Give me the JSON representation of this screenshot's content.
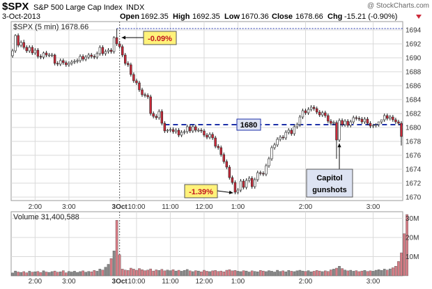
{
  "header": {
    "symbol": "$SPX",
    "name": "S&P 500 Large Cap Index",
    "exchange": "INDX",
    "date": "3-Oct-2013",
    "watermark": "@ StockCharts.com",
    "open_label": "Open",
    "open": "1692.35",
    "high_label": "High",
    "high": "1692.35",
    "low_label": "Low",
    "low": "1670.36",
    "close_label": "Close",
    "close": "1678.66",
    "chg_label": "Chg",
    "chg": "-15.21 (-0.90%)"
  },
  "colors": {
    "up_candle": "#ffffff",
    "down_candle": "#cc2a3a",
    "volume_up": "#888888",
    "volume_down": "#d77b84",
    "reference_line": "#1c2fa8",
    "grid": "#d9d9d9",
    "annotation_fill": "#fff27a"
  },
  "chart_data": [
    {
      "type": "candlestick",
      "legend": "$SPX (5 min) 1678.66",
      "x_tick_labels": [
        "2:00",
        "3:00",
        "3Oct",
        "10:00",
        "11:00",
        "12:00",
        "1:00",
        "2:00",
        "3:00"
      ],
      "y_ticks": [
        1670,
        1672,
        1674,
        1676,
        1678,
        1680,
        1682,
        1684,
        1686,
        1688,
        1690,
        1692,
        1694
      ],
      "ylim": [
        1669.5,
        1695.2
      ],
      "reference_line": {
        "value": 1680.4,
        "label": "1680"
      },
      "previous_high_line": {
        "value": 1694.2
      },
      "annotations": [
        {
          "text": "-0.09%",
          "target_index": 38
        },
        {
          "text": "-1.39%",
          "target_index": 79
        },
        {
          "text": "Capitol gunshots",
          "lines": [
            "Capitol",
            "gunshots"
          ],
          "target_index": 116
        }
      ],
      "open": [
        1690.3,
        1691.0,
        1693.2,
        1691.8,
        1692.2,
        1691.5,
        1691.0,
        1691.5,
        1690.7,
        1691.1,
        1690.2,
        1690.1,
        1690.7,
        1690.4,
        1690.4,
        1690.4,
        1689.2,
        1689.1,
        1689.6,
        1689.3,
        1689.0,
        1689.2,
        1689.4,
        1689.5,
        1689.6,
        1690.2,
        1689.8,
        1690.1,
        1690.4,
        1690.2,
        1690.1,
        1690.6,
        1691.5,
        1690.6,
        1690.9,
        1691.1,
        1690.9,
        1692.9,
        1692.0,
        1691.6,
        1690.4,
        1689.2,
        1689.0,
        1687.6,
        1686.7,
        1686.4,
        1685.4,
        1684.7,
        1684.6,
        1684.4,
        1682.0,
        1681.6,
        1681.4,
        1682.3,
        1680.6,
        1679.5,
        1679.6,
        1679.7,
        1679.4,
        1679.6,
        1678.9,
        1679.3,
        1679.4,
        1680.1,
        1679.5,
        1680.1,
        1679.6,
        1679.6,
        1679.5,
        1678.9,
        1678.6,
        1679.0,
        1678.5,
        1677.3,
        1677.1,
        1676.1,
        1675.1,
        1674.3,
        1672.8,
        1672.1,
        1670.7,
        1671.0,
        1672.3,
        1671.4,
        1672.4,
        1672.7,
        1671.5,
        1672.5,
        1673.5,
        1673.4,
        1673.3,
        1674.5,
        1675.5,
        1677.1,
        1677.5,
        1678.3,
        1678.6,
        1678.5,
        1679.3,
        1679.6,
        1679.1,
        1680.1,
        1680.4,
        1681.5,
        1682.4,
        1682.1,
        1682.6,
        1682.9,
        1682.7,
        1682.2,
        1681.8,
        1682.1,
        1681.7,
        1680.9,
        1680.6,
        1680.7,
        1678.2,
        1681.0,
        1680.4,
        1680.9,
        1680.3,
        1680.8,
        1681.4,
        1681.3,
        1681.2,
        1680.8,
        1681.2,
        1680.6,
        1680.2,
        1680.3,
        1680.4,
        1680.8,
        1681.1,
        1681.7,
        1681.3,
        1681.5,
        1681.1,
        1680.8,
        1680.6
      ],
      "close": [
        1691.0,
        1693.2,
        1691.8,
        1692.2,
        1691.5,
        1691.0,
        1691.5,
        1690.7,
        1691.1,
        1690.2,
        1690.1,
        1690.7,
        1690.4,
        1690.4,
        1690.4,
        1689.2,
        1689.1,
        1689.6,
        1689.3,
        1689.0,
        1689.2,
        1689.4,
        1689.5,
        1689.6,
        1690.2,
        1689.8,
        1690.1,
        1690.4,
        1690.2,
        1690.1,
        1690.6,
        1691.5,
        1690.6,
        1690.9,
        1691.1,
        1690.9,
        1692.9,
        1692.0,
        1691.6,
        1690.4,
        1689.2,
        1689.0,
        1687.6,
        1686.7,
        1686.4,
        1685.4,
        1684.7,
        1684.6,
        1684.4,
        1682.0,
        1681.6,
        1681.4,
        1682.3,
        1680.6,
        1679.5,
        1679.6,
        1679.7,
        1679.4,
        1679.6,
        1678.9,
        1679.3,
        1679.4,
        1680.1,
        1679.5,
        1680.1,
        1679.6,
        1679.6,
        1679.5,
        1678.9,
        1678.6,
        1679.0,
        1678.5,
        1677.3,
        1677.1,
        1676.1,
        1675.1,
        1674.3,
        1672.8,
        1672.1,
        1670.7,
        1671.0,
        1672.3,
        1671.4,
        1672.4,
        1672.7,
        1671.5,
        1672.5,
        1673.5,
        1673.4,
        1673.3,
        1674.5,
        1675.5,
        1677.1,
        1677.5,
        1678.3,
        1678.6,
        1678.5,
        1679.3,
        1679.6,
        1679.1,
        1680.1,
        1680.4,
        1681.5,
        1682.4,
        1682.1,
        1682.6,
        1682.9,
        1682.7,
        1682.2,
        1681.8,
        1682.1,
        1681.7,
        1680.9,
        1680.6,
        1680.7,
        1678.2,
        1681.0,
        1680.4,
        1680.9,
        1680.3,
        1680.8,
        1681.4,
        1681.3,
        1681.2,
        1680.8,
        1681.2,
        1680.6,
        1680.2,
        1680.3,
        1680.4,
        1680.8,
        1681.1,
        1681.7,
        1681.3,
        1681.5,
        1681.1,
        1680.8,
        1680.6,
        1678.7
      ],
      "high": [
        1691.3,
        1693.4,
        1693.5,
        1692.5,
        1692.6,
        1691.8,
        1691.8,
        1691.8,
        1691.4,
        1691.4,
        1690.5,
        1690.9,
        1691.0,
        1690.7,
        1690.7,
        1690.6,
        1689.5,
        1689.9,
        1689.9,
        1689.6,
        1689.5,
        1689.7,
        1689.8,
        1689.9,
        1690.5,
        1690.5,
        1690.4,
        1690.7,
        1690.7,
        1690.5,
        1690.9,
        1691.8,
        1691.8,
        1691.2,
        1691.4,
        1691.4,
        1693.1,
        1694.2,
        1692.4,
        1691.9,
        1690.7,
        1689.5,
        1689.3,
        1687.9,
        1687.0,
        1686.7,
        1685.7,
        1685.0,
        1684.9,
        1684.7,
        1682.3,
        1681.9,
        1682.6,
        1682.6,
        1680.9,
        1679.8,
        1680.0,
        1680.0,
        1679.9,
        1679.9,
        1679.6,
        1679.7,
        1680.4,
        1680.4,
        1680.4,
        1680.4,
        1679.9,
        1679.9,
        1679.8,
        1679.2,
        1679.3,
        1679.3,
        1678.8,
        1677.6,
        1677.4,
        1676.4,
        1675.4,
        1674.6,
        1673.1,
        1672.4,
        1671.3,
        1672.6,
        1672.6,
        1672.7,
        1673.0,
        1673.0,
        1672.8,
        1673.8,
        1673.8,
        1673.7,
        1674.8,
        1675.8,
        1677.4,
        1677.8,
        1678.6,
        1678.9,
        1678.9,
        1679.6,
        1679.9,
        1679.9,
        1680.4,
        1680.7,
        1681.8,
        1682.7,
        1682.7,
        1682.9,
        1683.2,
        1683.2,
        1683.0,
        1682.5,
        1682.4,
        1682.4,
        1682.0,
        1681.2,
        1681.0,
        1681.0,
        1681.3,
        1681.3,
        1681.2,
        1681.2,
        1681.1,
        1681.7,
        1681.7,
        1681.6,
        1681.5,
        1681.5,
        1681.5,
        1680.9,
        1680.5,
        1680.6,
        1680.8,
        1681.1,
        1682.0,
        1682.0,
        1681.8,
        1681.8,
        1681.4,
        1681.1,
        1680.9
      ],
      "low": [
        1690.0,
        1690.7,
        1691.5,
        1691.5,
        1691.2,
        1690.7,
        1690.7,
        1690.4,
        1690.4,
        1689.9,
        1689.8,
        1689.8,
        1690.1,
        1690.1,
        1690.1,
        1688.9,
        1688.8,
        1688.8,
        1689.0,
        1688.7,
        1688.7,
        1688.9,
        1689.1,
        1689.2,
        1689.3,
        1689.5,
        1689.5,
        1689.8,
        1689.9,
        1689.8,
        1689.8,
        1690.3,
        1690.3,
        1690.3,
        1690.6,
        1690.6,
        1690.6,
        1691.7,
        1691.3,
        1690.1,
        1688.9,
        1688.7,
        1687.3,
        1686.4,
        1686.1,
        1685.1,
        1684.4,
        1684.3,
        1684.1,
        1681.7,
        1681.3,
        1681.1,
        1681.1,
        1680.3,
        1679.2,
        1679.2,
        1679.3,
        1679.1,
        1679.1,
        1678.6,
        1678.6,
        1679.0,
        1679.1,
        1679.2,
        1679.2,
        1679.3,
        1679.3,
        1679.2,
        1678.6,
        1678.3,
        1678.3,
        1678.2,
        1677.0,
        1676.8,
        1675.8,
        1674.8,
        1674.0,
        1672.5,
        1671.8,
        1670.4,
        1670.4,
        1670.7,
        1671.1,
        1671.1,
        1672.1,
        1671.2,
        1671.2,
        1672.2,
        1673.1,
        1673.0,
        1673.0,
        1674.2,
        1675.2,
        1676.8,
        1677.2,
        1678.0,
        1678.2,
        1678.2,
        1679.0,
        1678.8,
        1678.8,
        1679.8,
        1680.1,
        1681.2,
        1681.8,
        1681.8,
        1682.3,
        1682.4,
        1681.9,
        1681.5,
        1681.5,
        1681.4,
        1680.6,
        1680.3,
        1680.3,
        1675.5,
        1677.9,
        1680.1,
        1680.1,
        1680.0,
        1680.0,
        1680.5,
        1681.0,
        1680.9,
        1680.5,
        1680.5,
        1680.3,
        1679.9,
        1679.9,
        1680.0,
        1680.1,
        1680.5,
        1680.8,
        1681.0,
        1681.0,
        1680.8,
        1680.5,
        1680.3,
        1677.4
      ]
    },
    {
      "type": "bar",
      "legend": "Volume 31,400,588",
      "x_tick_labels": [
        "2:00",
        "3:00",
        "3Oct",
        "10:00",
        "11:00",
        "12:00",
        "1:00",
        "2:00",
        "3:00"
      ],
      "y_ticks": [
        "10M",
        "20M",
        "30M"
      ],
      "ylim": [
        0,
        32
      ],
      "unit": "millions of shares",
      "values": [
        1.5,
        2.5,
        2.0,
        1.8,
        2.2,
        1.6,
        2.4,
        1.9,
        2.1,
        2.3,
        1.7,
        2.6,
        2.0,
        1.8,
        2.2,
        2.5,
        1.9,
        2.1,
        2.7,
        1.6,
        2.3,
        2.0,
        2.4,
        1.8,
        2.2,
        2.6,
        1.9,
        2.3,
        2.1,
        2.8,
        2.4,
        3.5,
        3.0,
        4.5,
        6.0,
        9.0,
        13.0,
        29.0,
        11.0,
        3.5,
        3.0,
        2.8,
        4.0,
        3.5,
        2.9,
        3.8,
        3.2,
        2.7,
        3.0,
        3.6,
        2.5,
        3.1,
        2.8,
        3.4,
        2.6,
        3.0,
        2.7,
        3.2,
        2.5,
        2.9,
        2.4,
        2.8,
        3.3,
        2.6,
        2.2,
        2.7,
        2.5,
        2.1,
        2.9,
        2.4,
        2.2,
        2.6,
        2.8,
        2.3,
        2.5,
        2.1,
        2.9,
        3.2,
        2.6,
        2.8,
        2.4,
        2.2,
        2.7,
        2.5,
        2.0,
        2.6,
        2.3,
        2.1,
        2.8,
        2.5,
        2.2,
        2.7,
        2.4,
        2.0,
        2.9,
        2.3,
        2.6,
        2.1,
        2.8,
        2.4,
        2.2,
        2.6,
        2.9,
        2.5,
        2.3,
        2.7,
        2.1,
        2.4,
        2.8,
        2.5,
        2.2,
        2.6,
        2.3,
        3.1,
        3.5,
        4.0,
        5.0,
        3.8,
        3.0,
        2.6,
        2.9,
        2.4,
        2.7,
        2.2,
        2.5,
        2.8,
        2.3,
        2.6,
        2.4,
        2.9,
        3.2,
        2.8,
        3.5,
        3.0,
        3.6,
        4.2,
        5.0,
        7.5,
        12.0,
        22.0,
        32.0
      ]
    }
  ]
}
